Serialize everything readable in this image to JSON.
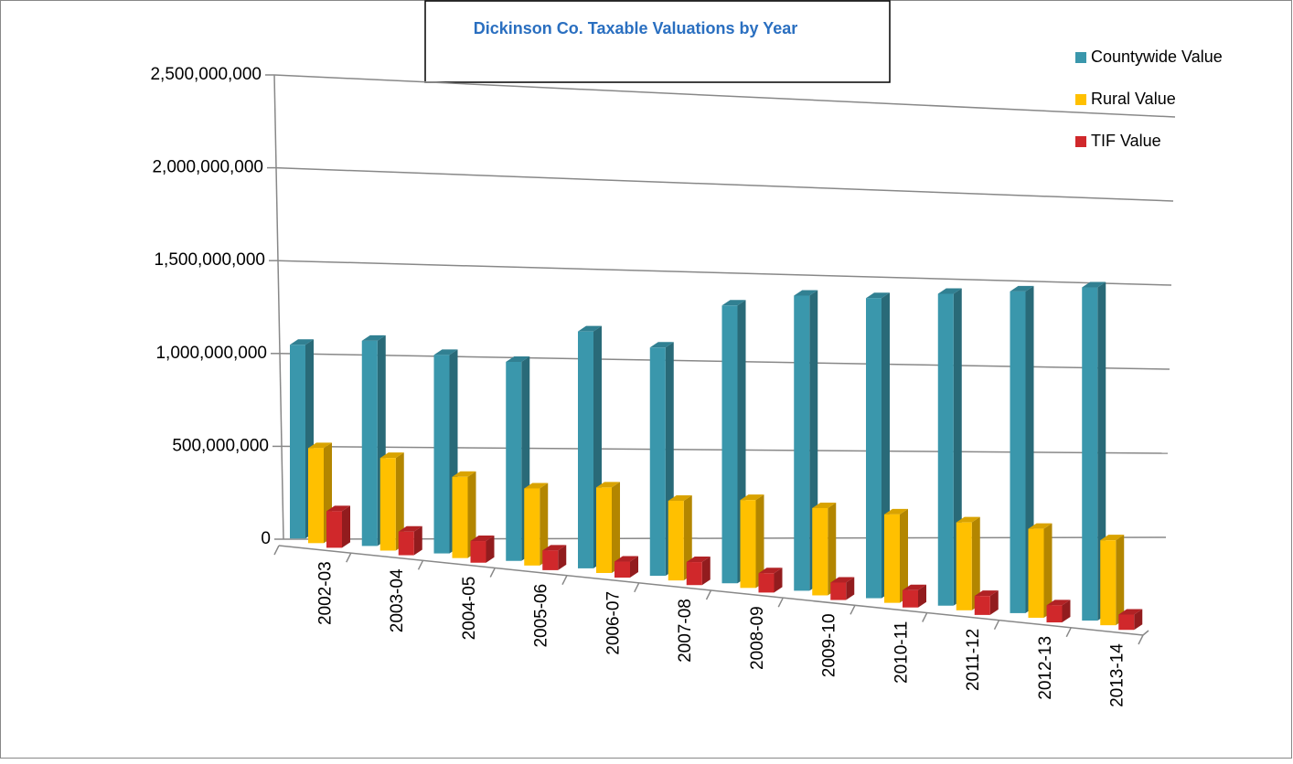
{
  "chart_data": {
    "type": "bar3d",
    "title": "Dickinson Co. Taxable Valuations by Year",
    "categories": [
      "2002-03",
      "2003-04",
      "2004-05",
      "2005-06",
      "2006-07",
      "2007-08",
      "2008-09",
      "2009-10",
      "2010-11",
      "2011-12",
      "2012-13",
      "2013-14"
    ],
    "series": [
      {
        "name": "Countywide Value",
        "color": "#3a97ac",
        "values": [
          1060000000,
          1130000000,
          1100000000,
          1110000000,
          1330000000,
          1290000000,
          1580000000,
          1690000000,
          1730000000,
          1810000000,
          1880000000,
          1960000000
        ]
      },
      {
        "name": "Rural Value",
        "color": "#ffc000",
        "values": [
          520000000,
          510000000,
          450000000,
          430000000,
          480000000,
          450000000,
          500000000,
          500000000,
          510000000,
          510000000,
          520000000,
          500000000
        ]
      },
      {
        "name": "TIF Value",
        "color": "#d0282b",
        "values": [
          200000000,
          130000000,
          120000000,
          110000000,
          90000000,
          130000000,
          110000000,
          100000000,
          100000000,
          110000000,
          100000000,
          90000000
        ]
      }
    ],
    "ylim": [
      0,
      2500000000
    ],
    "yticks": [
      0,
      {
        "value": 500000000,
        "label": "500,000,000"
      },
      {
        "value": 1000000000,
        "label": "1,000,000,000"
      },
      {
        "value": 1500000000,
        "label": "1,500,000,000"
      },
      {
        "value": 2000000000,
        "label": "2,000,000,000"
      },
      {
        "value": 2500000000,
        "label": "2,500,000,000"
      }
    ],
    "grid": true,
    "legend": "right"
  }
}
